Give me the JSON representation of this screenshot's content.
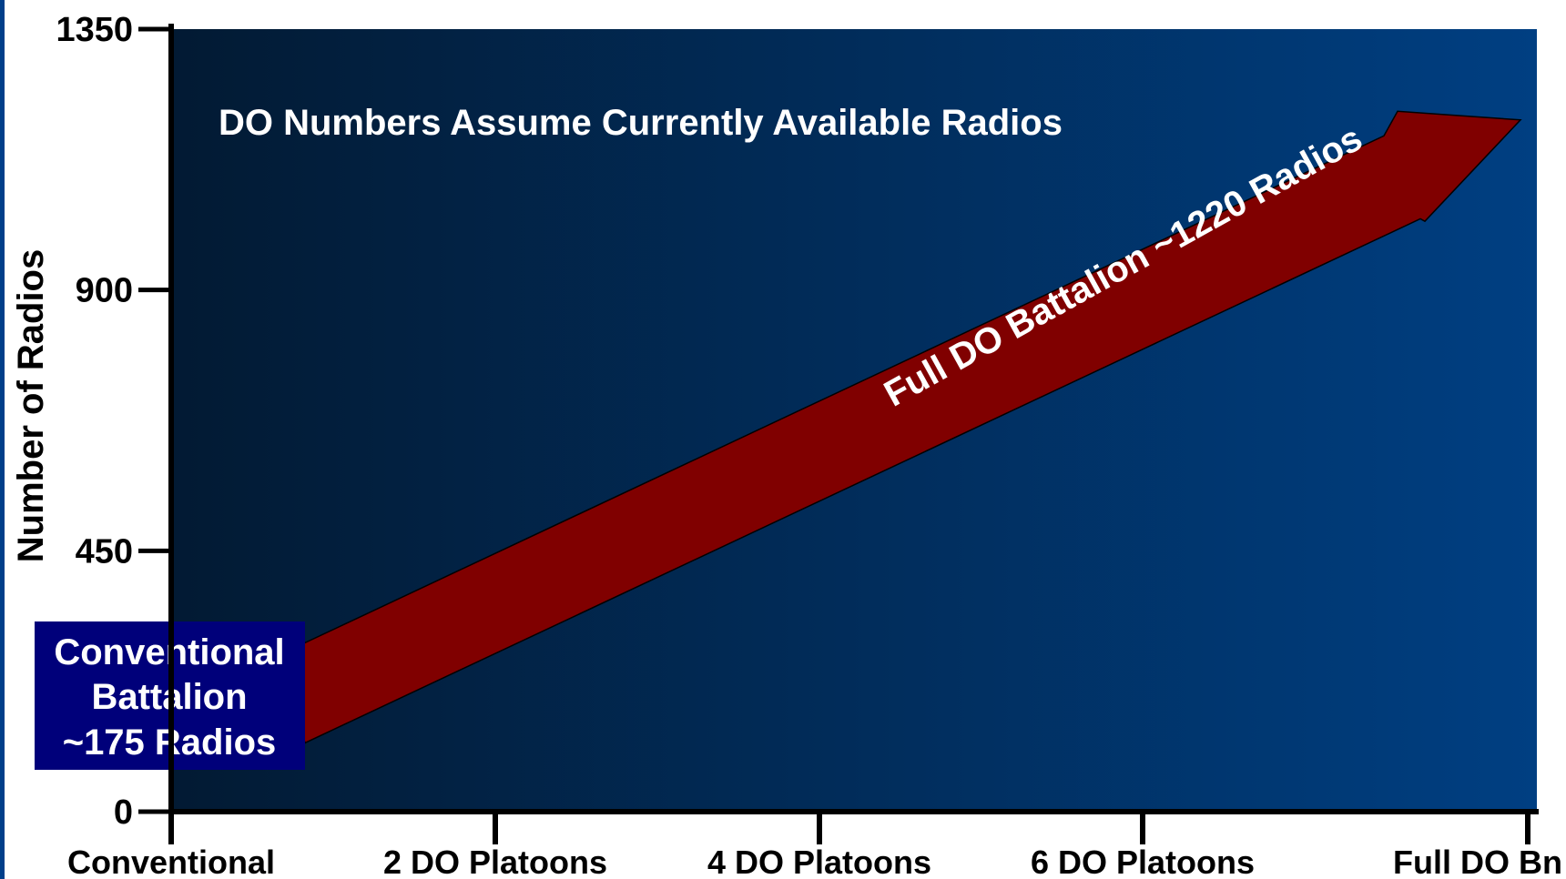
{
  "chart_data": {
    "type": "area",
    "title": "",
    "xlabel": "",
    "ylabel": "Number of Radios",
    "ylim": [
      0,
      1350
    ],
    "y_ticks": [
      "0",
      "450",
      "900",
      "1350"
    ],
    "categories": [
      "Conventional",
      "2  DO Platoons",
      "4 DO Platoons",
      "6 DO Platoons",
      "Full DO Bn"
    ],
    "grid": false,
    "legend": "none",
    "series": [
      {
        "x": [
          "Conventional",
          "Full DO Bn"
        ],
        "values": [
          175,
          1220
        ]
      }
    ],
    "annotations": {
      "note": "DO Numbers Assume Currently Available Radios",
      "arrow_label": "Full DO Battalion ~1220 Radios",
      "start_box": [
        "Conventional",
        "Battalion",
        "~175 Radios"
      ]
    },
    "colors": {
      "plot_gradient_start": "#021a33",
      "plot_gradient_end": "#003f82",
      "arrow_fill": "#800000",
      "start_box_fill": "#00007a",
      "left_border": "#003f8a",
      "axis": "#000000",
      "text_light": "#ffffff",
      "text_dark": "#000000"
    }
  }
}
